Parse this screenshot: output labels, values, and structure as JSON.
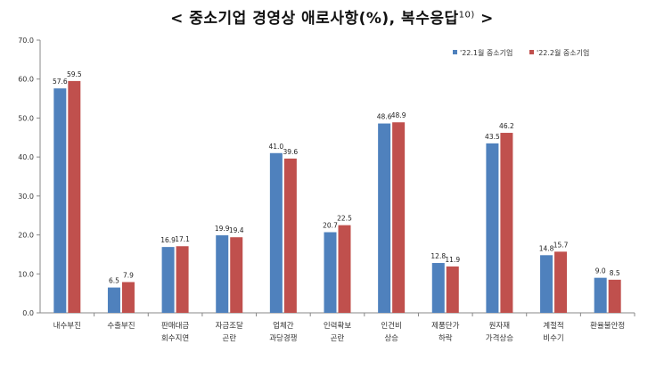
{
  "page_title": {
    "text": "< 중소기업 경영상 애로사항(%), 복수응답",
    "footnote": "10)",
    "suffix": " >"
  },
  "chart_data": {
    "type": "bar",
    "title": "",
    "xlabel": "",
    "ylabel": "",
    "ylim": [
      0,
      70
    ],
    "yticks": [
      "0.0",
      "10.0",
      "20.0",
      "30.0",
      "40.0",
      "50.0",
      "60.0",
      "70.0"
    ],
    "grid": false,
    "legend_position": "top-right",
    "categories": [
      [
        "내수부진"
      ],
      [
        "수출부진"
      ],
      [
        "판매대금",
        "회수지연"
      ],
      [
        "자금조달",
        "곤란"
      ],
      [
        "업체간",
        "과당경쟁"
      ],
      [
        "인력확보",
        "곤란"
      ],
      [
        "인건비",
        "상승"
      ],
      [
        "제품단가",
        "하락"
      ],
      [
        "원자재",
        "가격상승"
      ],
      [
        "계절적",
        "비수기"
      ],
      [
        "환율불안정"
      ]
    ],
    "series": [
      {
        "name": "'22.1월 중소기업",
        "color": "#4f81bd",
        "values": [
          57.6,
          6.5,
          16.9,
          19.9,
          41.0,
          20.7,
          48.6,
          12.8,
          43.5,
          14.8,
          9.0
        ],
        "labels": [
          "57.6",
          "6.5",
          "16.9",
          "19.9",
          "41.0",
          "20.7",
          "48.6",
          "12.8",
          "43.5",
          "14.8",
          "9.0"
        ]
      },
      {
        "name": "'22.2월 중소기업",
        "color": "#c0504d",
        "values": [
          59.5,
          7.9,
          17.1,
          19.4,
          39.6,
          22.5,
          48.9,
          11.9,
          46.2,
          15.7,
          8.5
        ],
        "labels": [
          "59.5",
          "7.9",
          "17.1",
          "19.4",
          "39.6",
          "22.5",
          "48.9",
          "11.9",
          "46.2",
          "15.7",
          "8.5"
        ]
      }
    ]
  }
}
